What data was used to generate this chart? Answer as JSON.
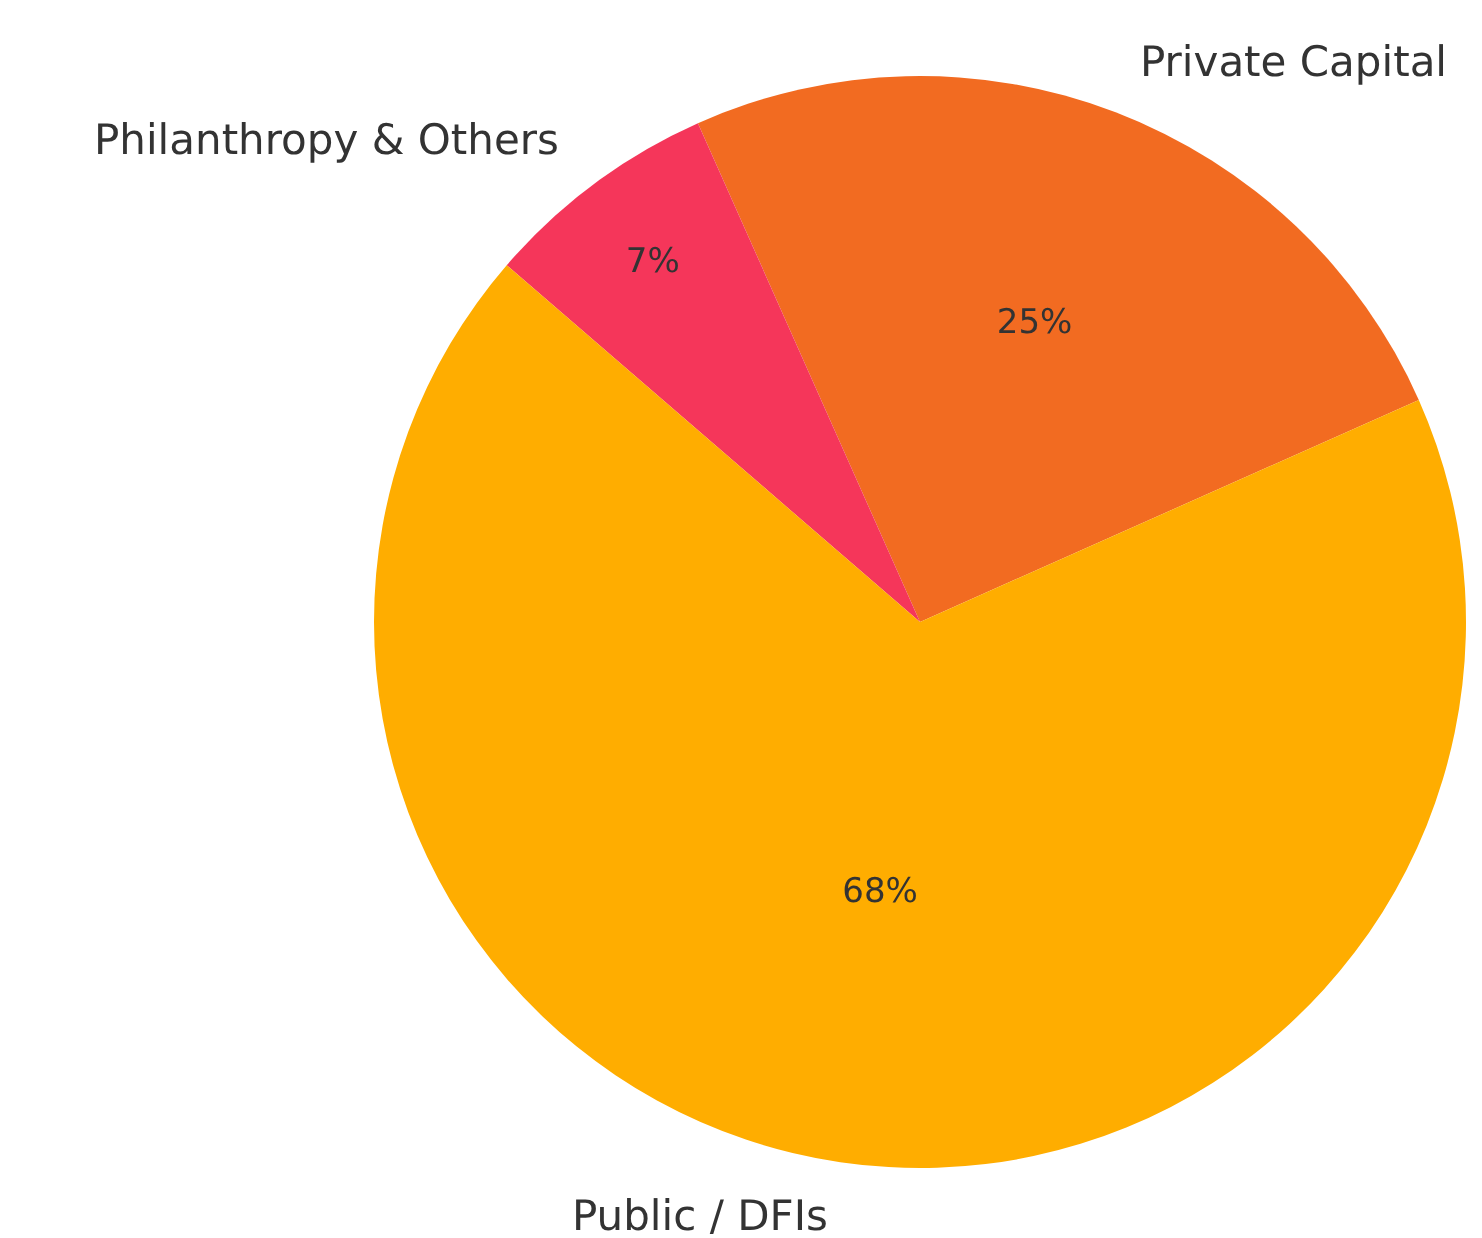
{
  "chart_data": {
    "type": "pie",
    "categories": [
      "Private Capital",
      "Philanthropy & Others",
      "Public / DFIs"
    ],
    "values": [
      25,
      7,
      68
    ],
    "colors": [
      "#f26b21",
      "#f5365a",
      "#ffad00"
    ],
    "value_labels": [
      "25%",
      "7%",
      "68%"
    ],
    "legend": false
  }
}
